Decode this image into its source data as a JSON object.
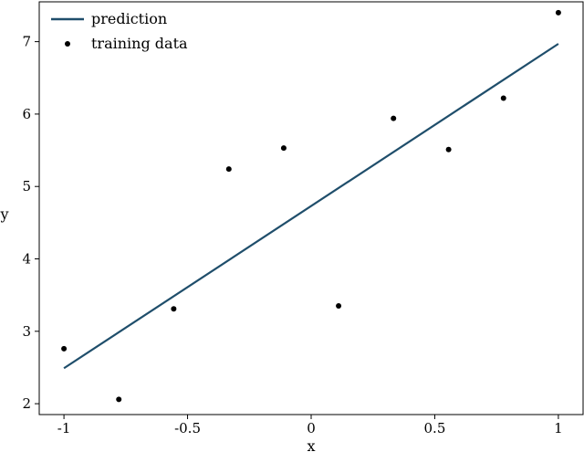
{
  "chart_data": {
    "type": "scatter",
    "title": "",
    "xlabel": "x",
    "ylabel": "y",
    "xlim": [
      -1.1,
      1.1
    ],
    "ylim": [
      1.85,
      7.55
    ],
    "x_ticks": [
      -1,
      -0.5,
      0,
      0.5,
      1
    ],
    "x_tick_labels": [
      "-1",
      "-0.5",
      "0",
      "0.5",
      "1"
    ],
    "y_ticks": [
      2,
      3,
      4,
      5,
      6,
      7
    ],
    "y_tick_labels": [
      "2",
      "3",
      "4",
      "5",
      "6",
      "7"
    ],
    "grid": false,
    "legend_position": "top-left",
    "series": [
      {
        "name": "prediction",
        "kind": "line",
        "color": "#1f4e6b",
        "x": [
          -1,
          1
        ],
        "y": [
          2.49,
          6.97
        ]
      },
      {
        "name": "training data",
        "kind": "scatter",
        "color": "#000000",
        "x": [
          -1,
          -0.778,
          -0.556,
          -0.333,
          -0.111,
          0.111,
          0.333,
          0.556,
          0.778,
          1
        ],
        "y": [
          2.76,
          2.06,
          3.31,
          5.24,
          5.53,
          3.35,
          5.94,
          5.51,
          6.22,
          7.4
        ]
      }
    ]
  }
}
